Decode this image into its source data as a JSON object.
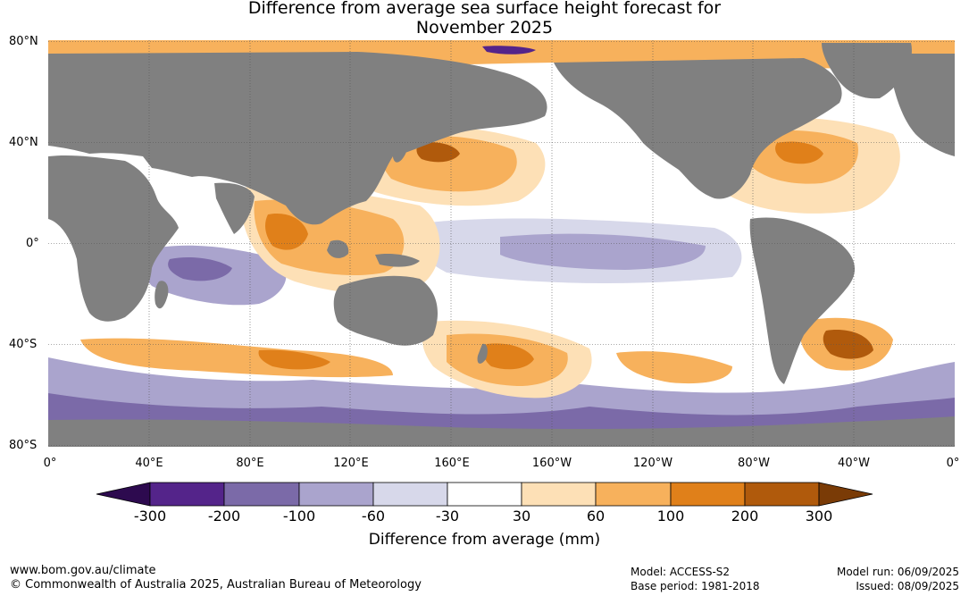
{
  "title": {
    "line1": "Difference from average sea surface height forecast for",
    "line2": "November 2025"
  },
  "map": {
    "projection": "equirectangular",
    "lon_range": [
      0,
      360
    ],
    "lat_range": [
      -80,
      80
    ],
    "land_color": "#808080",
    "lat_labels": [
      "80°N",
      "40°N",
      "0°",
      "40°S",
      "80°S"
    ],
    "lon_labels": [
      "0°",
      "40°E",
      "80°E",
      "120°E",
      "160°E",
      "160°W",
      "120°W",
      "80°W",
      "40°W",
      "0°"
    ]
  },
  "colorbar": {
    "colors": [
      "#2d0a4f",
      "#54248a",
      "#7b6aa8",
      "#aaa4cd",
      "#d7d8ea",
      "#ffffff",
      "#fde0b6",
      "#f7b15c",
      "#e0801a",
      "#b05a0c",
      "#7a3b06"
    ],
    "ticks": [
      "-300",
      "-200",
      "-100",
      "-60",
      "-30",
      "30",
      "60",
      "100",
      "200",
      "300"
    ],
    "label": "Difference from average (mm)"
  },
  "footer": {
    "website": "www.bom.gov.au/climate",
    "copyright": "© Commonwealth of Australia 2025, Australian Bureau of Meteorology",
    "model": "Model: ACCESS-S2",
    "base_period": "Base period: 1981-2018",
    "model_run": "Model run: 06/09/2025",
    "issued": "Issued: 08/09/2025"
  }
}
